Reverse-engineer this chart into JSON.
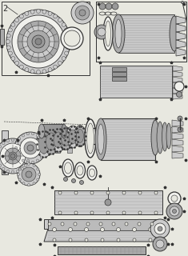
{
  "bg_color": "#e8e8e0",
  "line_color": "#333333",
  "gray1": "#aaaaaa",
  "gray2": "#cccccc",
  "gray3": "#999999",
  "gray4": "#bbbbbb",
  "gray5": "#888888",
  "white": "#f0f0ec",
  "fig_width": 2.35,
  "fig_height": 3.2,
  "dpi": 100
}
